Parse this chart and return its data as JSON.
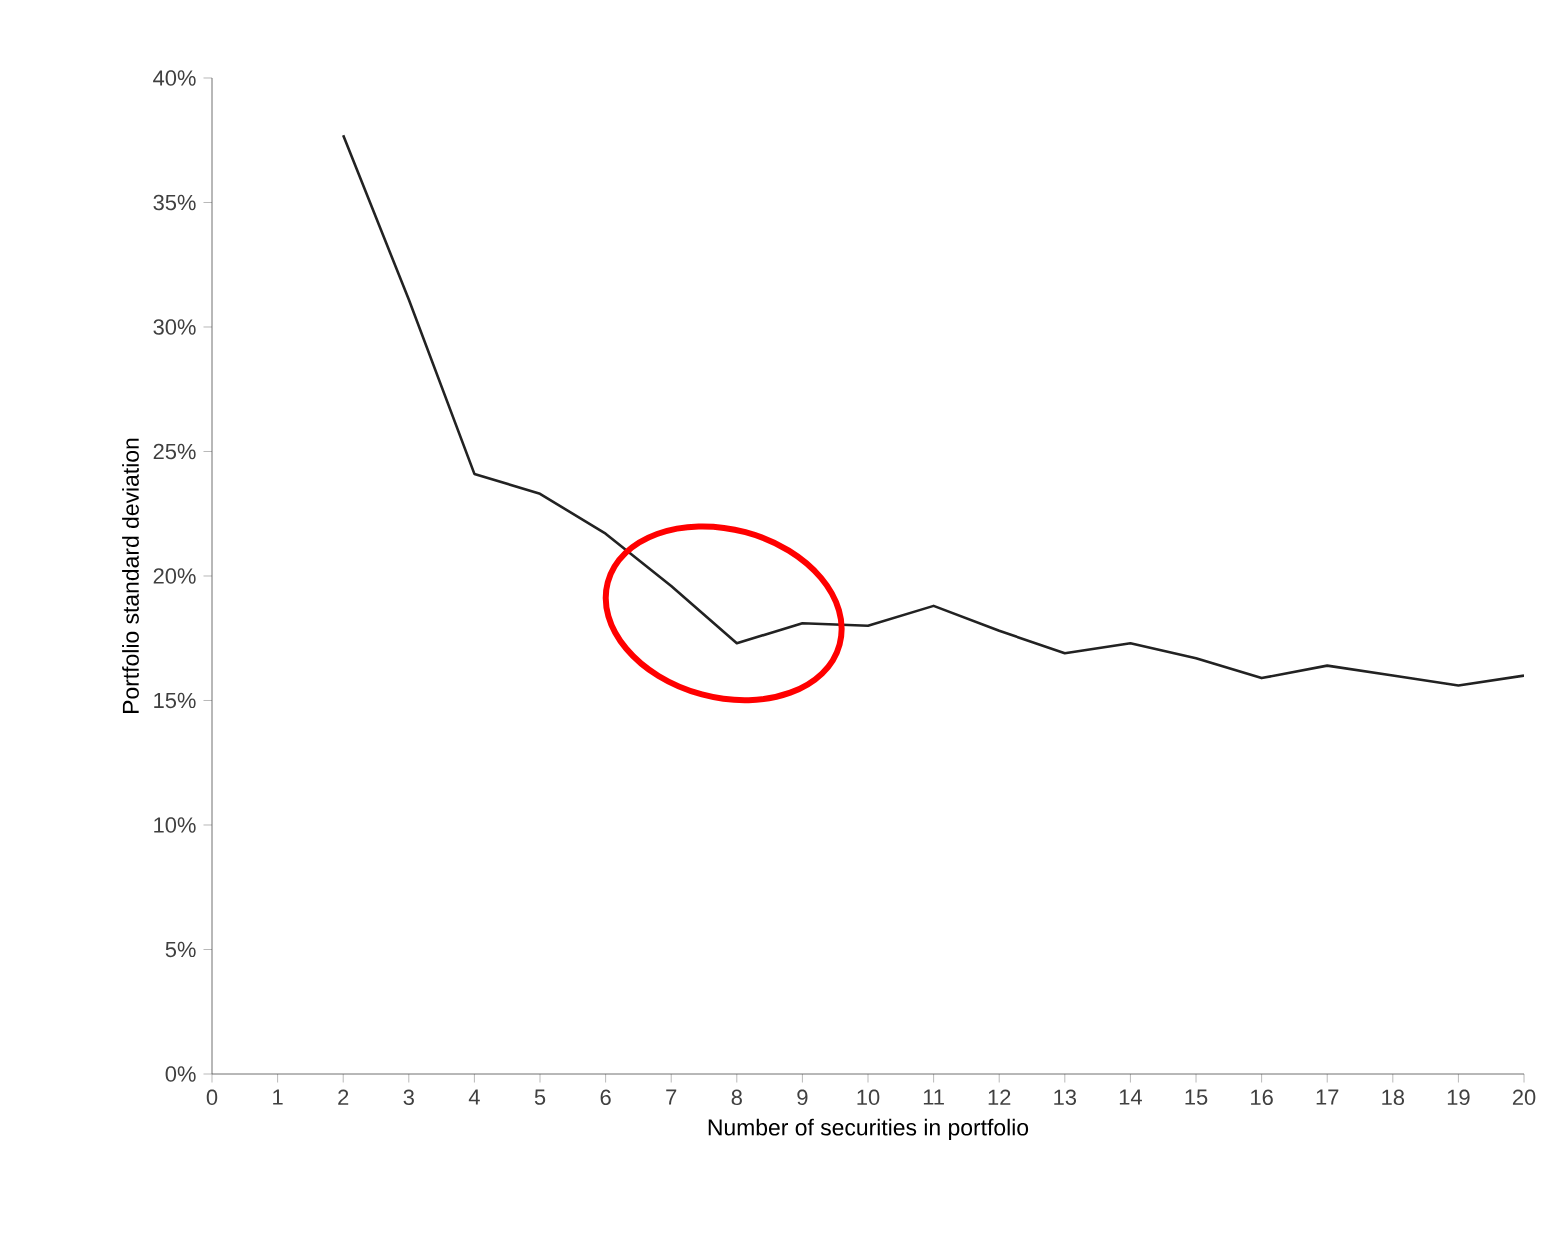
{
  "chart_data": {
    "type": "line",
    "xlabel": "Number of securities in portfolio",
    "ylabel": "Portfolio standard deviation",
    "x": [
      2,
      3,
      4,
      5,
      6,
      7,
      8,
      9,
      10,
      11,
      12,
      13,
      14,
      15,
      16,
      17,
      18,
      19,
      20
    ],
    "series": [
      {
        "color": "#222222",
        "values": [
          37.7,
          31.1,
          24.1,
          23.3,
          21.7,
          19.6,
          17.3,
          18.1,
          18.0,
          18.8,
          17.8,
          16.9,
          17.3,
          16.7,
          15.9,
          16.4,
          16.0,
          15.6,
          16.0
        ]
      }
    ],
    "xlim": [
      0,
      20
    ],
    "xticks": [
      0,
      1,
      2,
      3,
      4,
      5,
      6,
      7,
      8,
      9,
      10,
      11,
      12,
      13,
      14,
      15,
      16,
      17,
      18,
      19,
      20
    ],
    "ylim": [
      0,
      40
    ],
    "yticks": [
      {
        "value": 0,
        "label": "0%"
      },
      {
        "value": 5,
        "label": "5%"
      },
      {
        "value": 10,
        "label": "10%"
      },
      {
        "value": 15,
        "label": "15%"
      },
      {
        "value": 20,
        "label": "20%"
      },
      {
        "value": 25,
        "label": "25%"
      },
      {
        "value": 30,
        "label": "30%"
      },
      {
        "value": 35,
        "label": "35%"
      },
      {
        "value": 40,
        "label": "40%"
      }
    ],
    "marker": "none",
    "line_style": "solid"
  }
}
